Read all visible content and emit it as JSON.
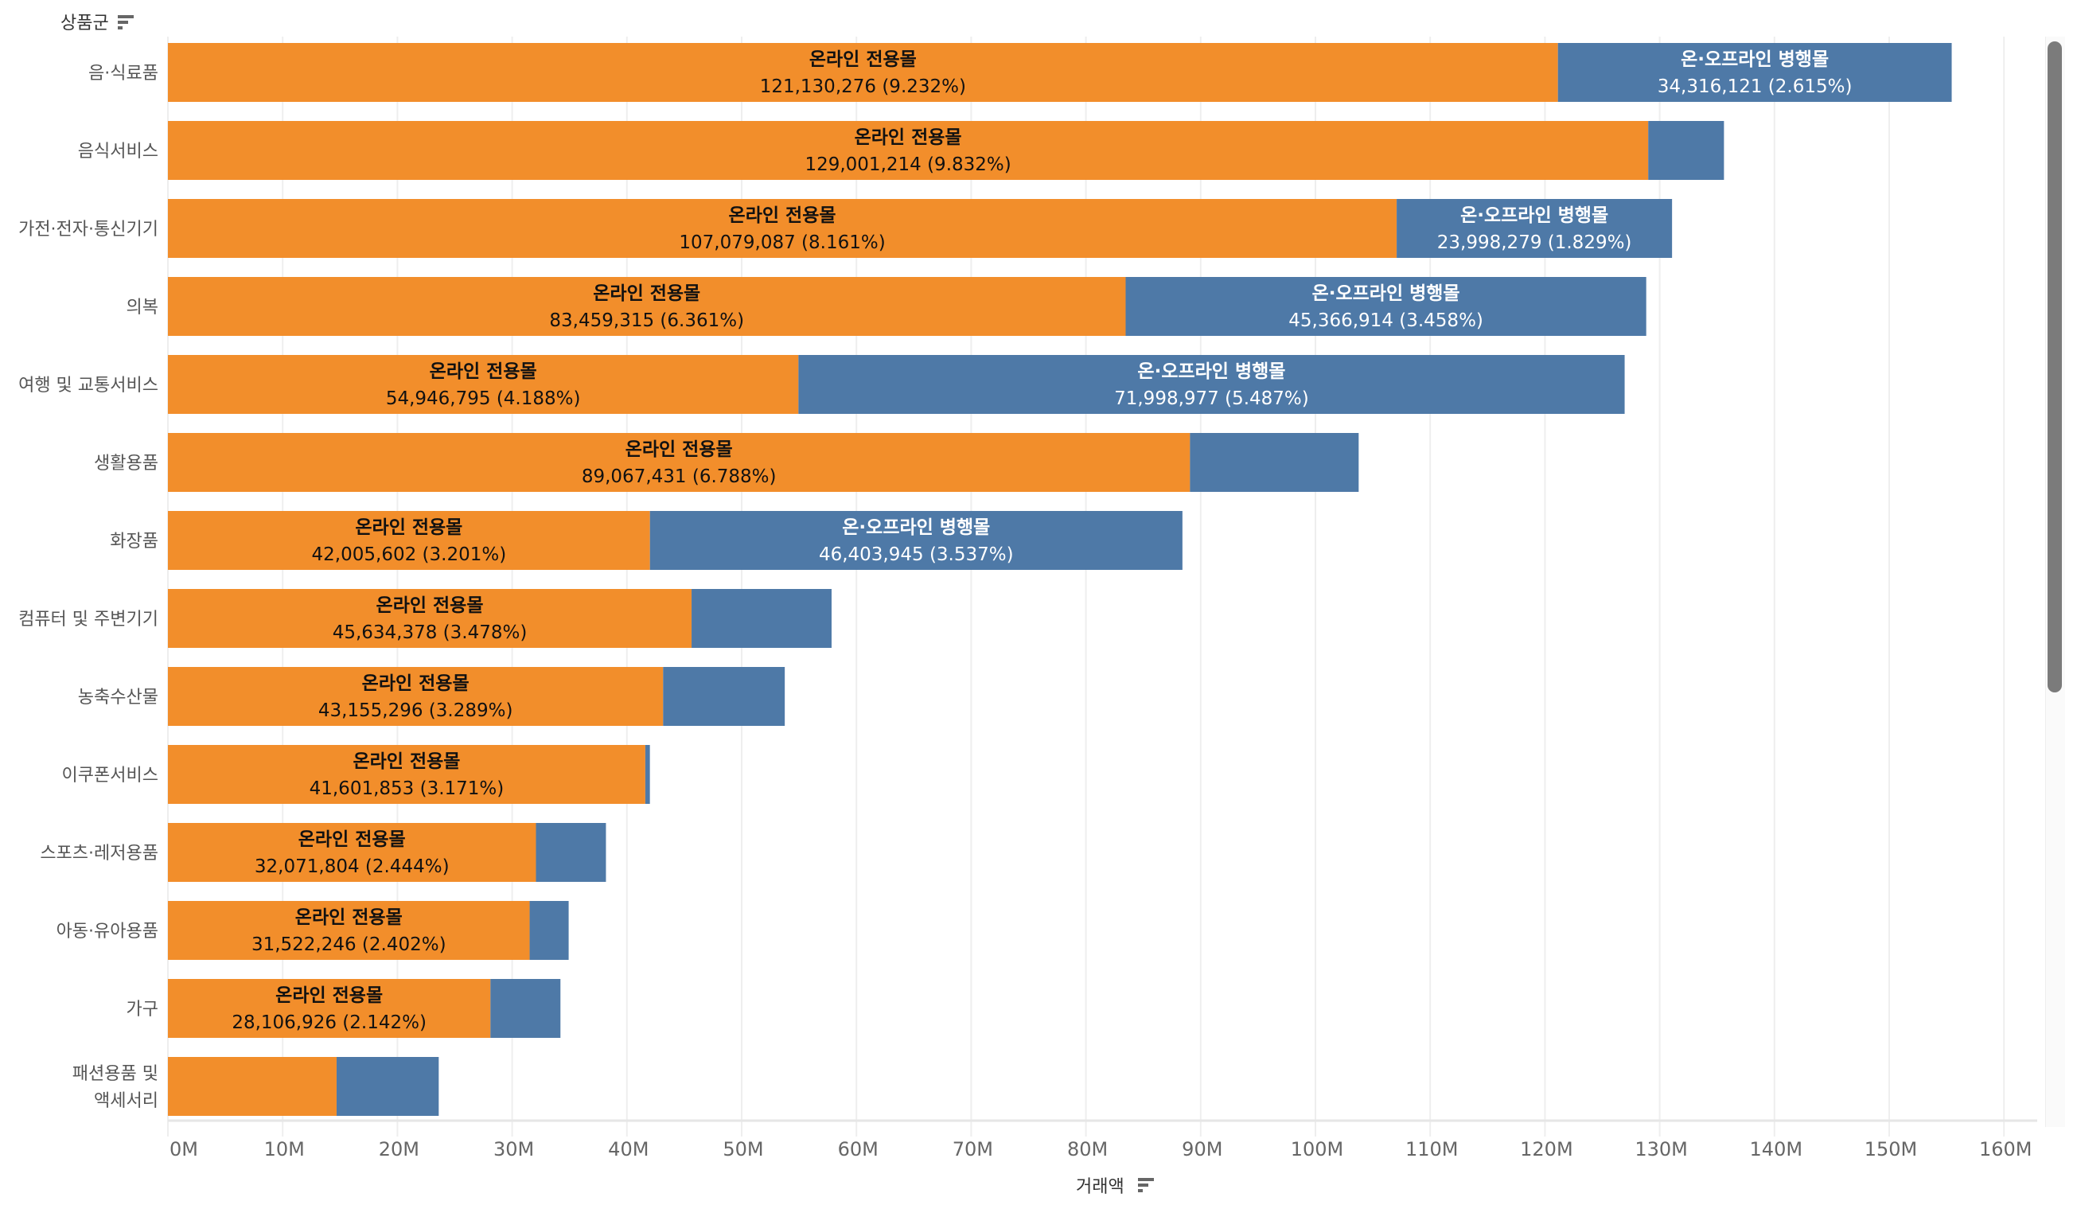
{
  "chart_data": {
    "type": "bar",
    "orientation": "horizontal",
    "stacked": true,
    "ytitle": "상품군",
    "xlabel": "거래액",
    "xlim": [
      0,
      165000000
    ],
    "xticks": [
      "0M",
      "10M",
      "20M",
      "30M",
      "40M",
      "50M",
      "60M",
      "70M",
      "80M",
      "90M",
      "100M",
      "110M",
      "120M",
      "130M",
      "140M",
      "150M",
      "160M"
    ],
    "xtick_values": [
      0,
      10000000,
      20000000,
      30000000,
      40000000,
      50000000,
      60000000,
      70000000,
      80000000,
      90000000,
      100000000,
      110000000,
      120000000,
      130000000,
      140000000,
      150000000,
      160000000
    ],
    "grid": true,
    "categories": [
      "음·식료품",
      "음식서비스",
      "가전·전자·통신기기",
      "의복",
      "여행 및 교통서비스",
      "생활용품",
      "화장품",
      "컴퓨터 및 주변기기",
      "농축수산물",
      "이쿠폰서비스",
      "스포츠·레저용품",
      "아동·유아용품",
      "가구",
      "패션용품 및 액세서리"
    ],
    "series": [
      {
        "name": "온라인 전용몰",
        "color": "#f28e2b",
        "label_color": "#111111",
        "values": [
          121130276,
          129001214,
          107079087,
          83459315,
          54946795,
          89067431,
          42005602,
          45634378,
          43155296,
          41601853,
          32071804,
          31522246,
          28106926,
          14700000
        ],
        "labels": [
          "121,130,276 (9.232%)",
          "129,001,214 (9.832%)",
          "107,079,087 (8.161%)",
          "83,459,315 (6.361%)",
          "54,946,795 (4.188%)",
          "89,067,431 (6.788%)",
          "42,005,602 (3.201%)",
          "45,634,378 (3.478%)",
          "43,155,296 (3.289%)",
          "41,601,853 (3.171%)",
          "32,071,804 (2.444%)",
          "31,522,246 (2.402%)",
          "28,106,926 (2.142%)",
          ""
        ],
        "show_label": [
          true,
          true,
          true,
          true,
          true,
          true,
          true,
          true,
          true,
          true,
          true,
          true,
          true,
          false
        ]
      },
      {
        "name": "온·오프라인 병행몰",
        "color": "#4e79a7",
        "label_color": "#ffffff",
        "values": [
          34316121,
          6600000,
          23998279,
          45366914,
          71998977,
          14700000,
          46403945,
          12200000,
          10600000,
          400000,
          6100000,
          3400000,
          6100000,
          8900000
        ],
        "labels": [
          "34,316,121 (2.615%)",
          "",
          "23,998,279 (1.829%)",
          "45,366,914 (3.458%)",
          "71,998,977 (5.487%)",
          "",
          "46,403,945 (3.537%)",
          "",
          "",
          "",
          "",
          "",
          "",
          ""
        ],
        "show_label": [
          true,
          false,
          true,
          true,
          true,
          false,
          true,
          false,
          false,
          false,
          false,
          false,
          false,
          false
        ]
      }
    ]
  },
  "ui": {
    "sort_icon": "sort-descending-icon"
  }
}
